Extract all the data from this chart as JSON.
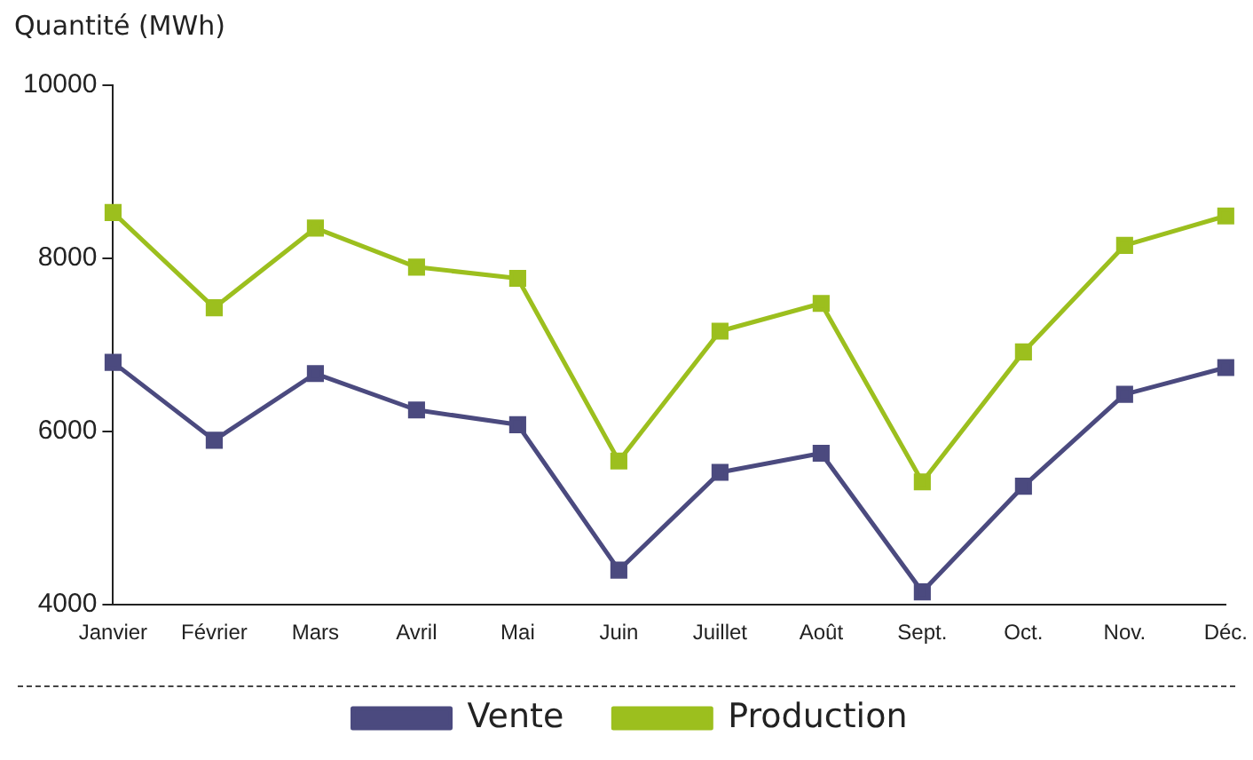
{
  "chart_data": {
    "type": "line",
    "ylabel": "Quantité (MWh)",
    "categories": [
      "Janvier",
      "Février",
      "Mars",
      "Avril",
      "Mai",
      "Juin",
      "Juillet",
      "Août",
      "Sept.",
      "Oct.",
      "Nov.",
      "Déc."
    ],
    "series": [
      {
        "name": "Vente",
        "color": "#4b4a7f",
        "values": [
          6800,
          5900,
          6670,
          6250,
          6080,
          4400,
          5530,
          5750,
          4150,
          5370,
          6430,
          6740
        ]
      },
      {
        "name": "Production",
        "color": "#9cbf1e",
        "values": [
          8530,
          7430,
          8350,
          7900,
          7770,
          5660,
          7160,
          7480,
          5420,
          6920,
          8150,
          8490
        ]
      }
    ],
    "ylim": [
      4000,
      10000
    ],
    "yticks": [
      4000,
      6000,
      8000,
      10000
    ],
    "grid": false,
    "legend": "bottom",
    "marker": "square",
    "line_style": "solid"
  }
}
